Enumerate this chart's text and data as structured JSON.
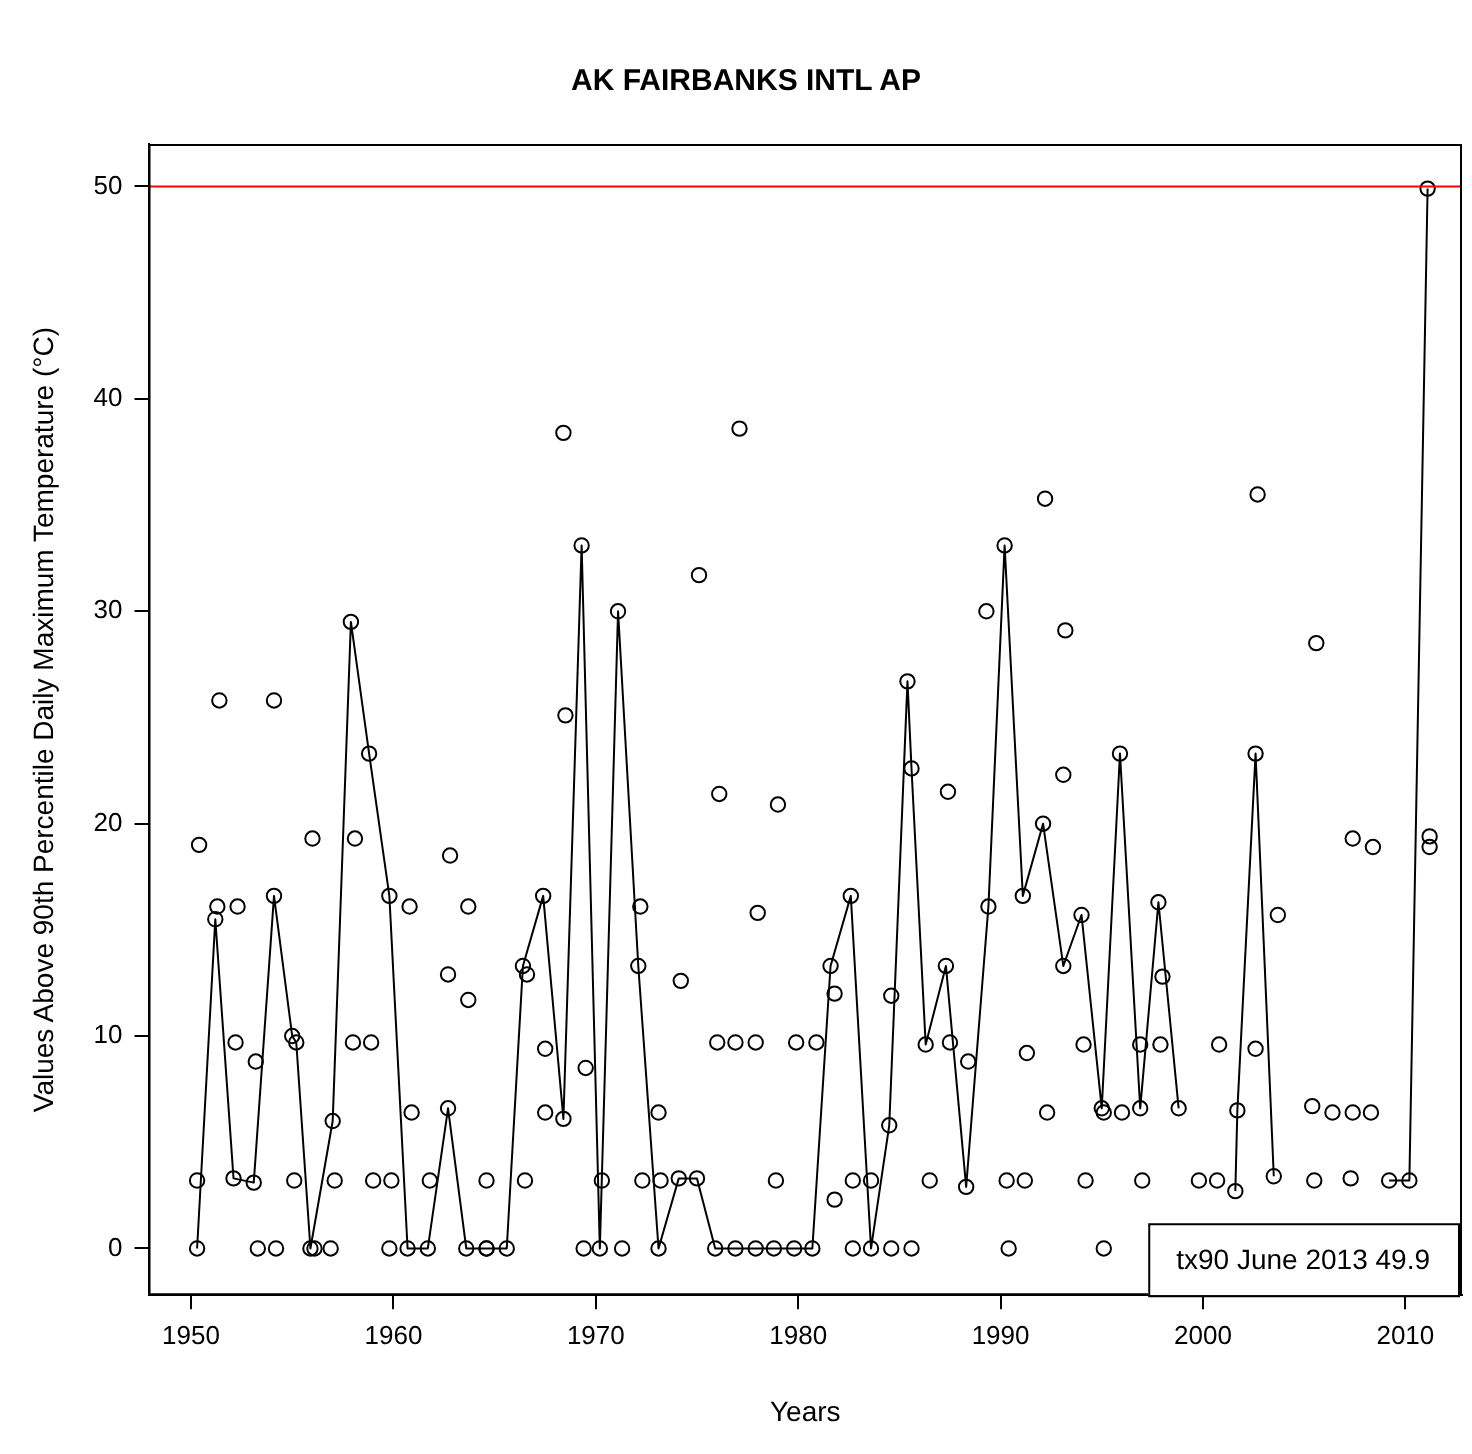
{
  "chart_data": {
    "type": "scatter",
    "title": "AK FAIRBANKS INTL AP",
    "xlabel": "Years",
    "ylabel": "Values Above 90th Percentile Daily Maximum Temperature (°C)",
    "xlim": [
      1947.9,
      2012.8
    ],
    "ylim": [
      -2.2,
      52.0
    ],
    "xticks": [
      1950,
      1960,
      1970,
      1980,
      1990,
      2000,
      2010
    ],
    "yticks": [
      0,
      10,
      20,
      30,
      40,
      50
    ],
    "grid": false,
    "legend": false,
    "marker": "circle",
    "line_style": "solid",
    "ref_lines": [
      {
        "axis": "y",
        "value": 50,
        "color": "#ff0000"
      }
    ],
    "annotations": [
      "tx90 June 2013 49.9"
    ],
    "series": [
      {
        "type": "line",
        "color": "#000000",
        "x": [
          1950.3,
          1951.2,
          1952.1,
          1953.1,
          1954.1,
          1955.0,
          1955.2,
          1955.9,
          1957.0,
          1957.9,
          1958.8,
          1959.8,
          1960.7,
          1961.7,
          1962.7,
          1963.6,
          1964.6,
          1965.6,
          1966.4,
          1967.4,
          1968.4,
          1969.3,
          1970.2,
          1971.1,
          1972.1,
          1973.1,
          1974.1,
          1975.0,
          1975.9,
          1976.9,
          1977.9,
          1978.8,
          1979.8,
          1980.7,
          1981.6,
          1982.6,
          1983.6,
          1984.5,
          1985.4,
          1985.6,
          1986.3,
          1987.3,
          1988.3,
          1989.4,
          1990.2,
          1991.1,
          1992.1,
          1993.1,
          1994.0,
          1995.0,
          1995.9,
          1996.9,
          1997.8,
          1998.8,
          1999.7,
          2000.7,
          2001.6,
          2001.7,
          2002.6,
          2003.5,
          2004.4,
          2005.4,
          2006.4,
          2007.3,
          2008.3,
          2009.2,
          2010.2,
          2011.1
        ],
        "values": [
          0,
          15.5,
          3.3,
          3.1,
          16.6,
          10.0,
          9.7,
          0,
          6.0,
          29.5,
          23.3,
          16.6,
          0,
          0,
          6.6,
          0,
          0,
          0,
          13.3,
          16.6,
          6.1,
          33.1,
          0,
          30.0,
          13.3,
          0,
          3.3,
          3.3,
          0,
          0,
          0,
          0,
          0,
          0,
          13.3,
          16.6,
          0,
          5.8,
          26.7,
          22.6,
          9.6,
          13.3,
          2.9,
          16.1,
          33.1,
          16.6,
          20.0,
          13.3,
          15.7,
          6.6,
          23.3,
          6.6,
          16.3,
          6.6,
          null,
          null,
          2.7,
          6.5,
          23.3,
          3.4,
          null,
          6.7,
          null,
          3.3,
          null,
          3.2,
          3.2,
          49.9
        ]
      },
      {
        "type": "scatter",
        "color": "#000000",
        "x": [
          1968.4,
          1968.5,
          1951.4,
          1954.1,
          1950.4,
          1956.0,
          1958.1,
          1962.8,
          1951.3,
          1952.3,
          1960.8,
          1963.7,
          1962.7,
          1963.7,
          1966.6,
          1952.2,
          1953.2,
          1958.0,
          1958.9,
          1967.5,
          1969.5,
          1960.9,
          1967.5,
          1950.3,
          1955.1,
          1957.1,
          1959.0,
          1959.9,
          1961.8,
          1964.6,
          1966.5,
          1953.3,
          1954.2,
          1956.1,
          1956.9,
          1959.8,
          1964.6,
          1969.4,
          1977.1,
          1975.1,
          1989.3,
          1976.1,
          1979.0,
          1987.4,
          1972.2,
          1978.0,
          1974.2,
          1981.8,
          1984.6,
          1976.0,
          1976.9,
          1977.9,
          1979.9,
          1980.9,
          1987.5,
          1988.4,
          1973.1,
          1970.3,
          1972.3,
          1973.2,
          1978.9,
          1982.7,
          1983.6,
          1981.8,
          1986.5,
          1990.3,
          1971.3,
          1982.7,
          1984.6,
          1985.6,
          1990.4,
          1992.2,
          2002.7,
          1993.2,
          2005.6,
          1993.1,
          2007.4,
          2008.4,
          2011.2,
          2011.2,
          2003.7,
          1991.3,
          1994.1,
          1996.9,
          1997.9,
          2000.8,
          2002.6,
          1998.0,
          1992.3,
          1995.1,
          1996.0,
          2006.4,
          2007.4,
          2008.3,
          1991.2,
          1994.2,
          1997.0,
          1999.8,
          2000.7,
          2005.5,
          1995.1
        ],
        "values": [
          38.4,
          25.1,
          25.8,
          25.8,
          19.0,
          19.3,
          19.3,
          18.5,
          16.1,
          16.1,
          16.1,
          16.1,
          12.9,
          11.7,
          12.9,
          9.7,
          8.8,
          9.7,
          9.7,
          9.4,
          8.5,
          6.4,
          6.4,
          3.2,
          3.2,
          3.2,
          3.2,
          3.2,
          3.2,
          3.2,
          3.2,
          0,
          0,
          0,
          0,
          0,
          0,
          0,
          38.6,
          31.7,
          30.0,
          21.4,
          20.9,
          21.5,
          16.1,
          15.8,
          12.6,
          12.0,
          11.9,
          9.7,
          9.7,
          9.7,
          9.7,
          9.7,
          9.7,
          8.8,
          6.4,
          3.2,
          3.2,
          3.2,
          3.2,
          3.2,
          3.2,
          2.3,
          3.2,
          3.2,
          0,
          0,
          0,
          0,
          0,
          35.3,
          35.5,
          29.1,
          28.5,
          22.3,
          19.3,
          18.9,
          19.4,
          18.9,
          15.7,
          9.2,
          9.6,
          9.6,
          9.6,
          9.6,
          9.4,
          12.8,
          6.4,
          6.4,
          6.4,
          6.4,
          6.4,
          6.4,
          3.2,
          3.2,
          3.2,
          3.2,
          3.2,
          3.2,
          0
        ]
      }
    ]
  }
}
